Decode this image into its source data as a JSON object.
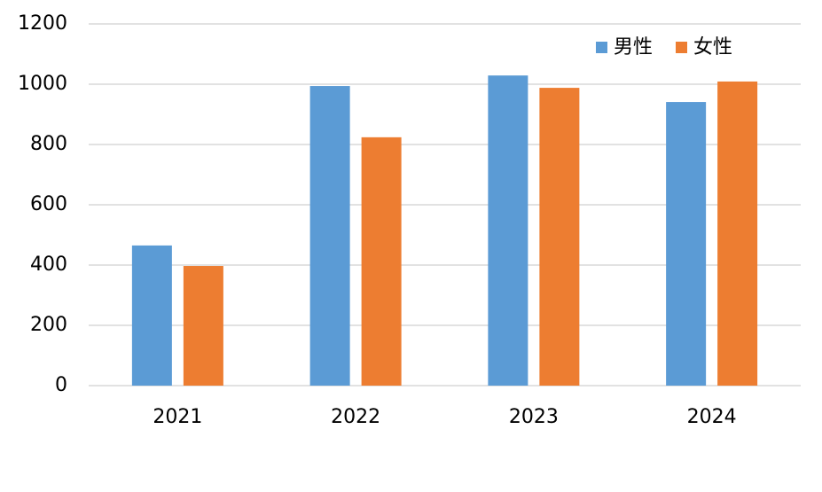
{
  "chart_data": {
    "type": "bar",
    "categories": [
      "2021",
      "2022",
      "2023",
      "2024"
    ],
    "series": [
      {
        "name": "男性",
        "color": "#5b9bd5",
        "values": [
          465,
          994,
          1029,
          941
        ]
      },
      {
        "name": "女性",
        "color": "#ed7d31",
        "values": [
          397,
          824,
          988,
          1009
        ]
      }
    ],
    "ylim": [
      0,
      1200
    ],
    "yticks": [
      0,
      200,
      400,
      600,
      800,
      1000,
      1200
    ],
    "grid": true,
    "legend": "top-right"
  }
}
